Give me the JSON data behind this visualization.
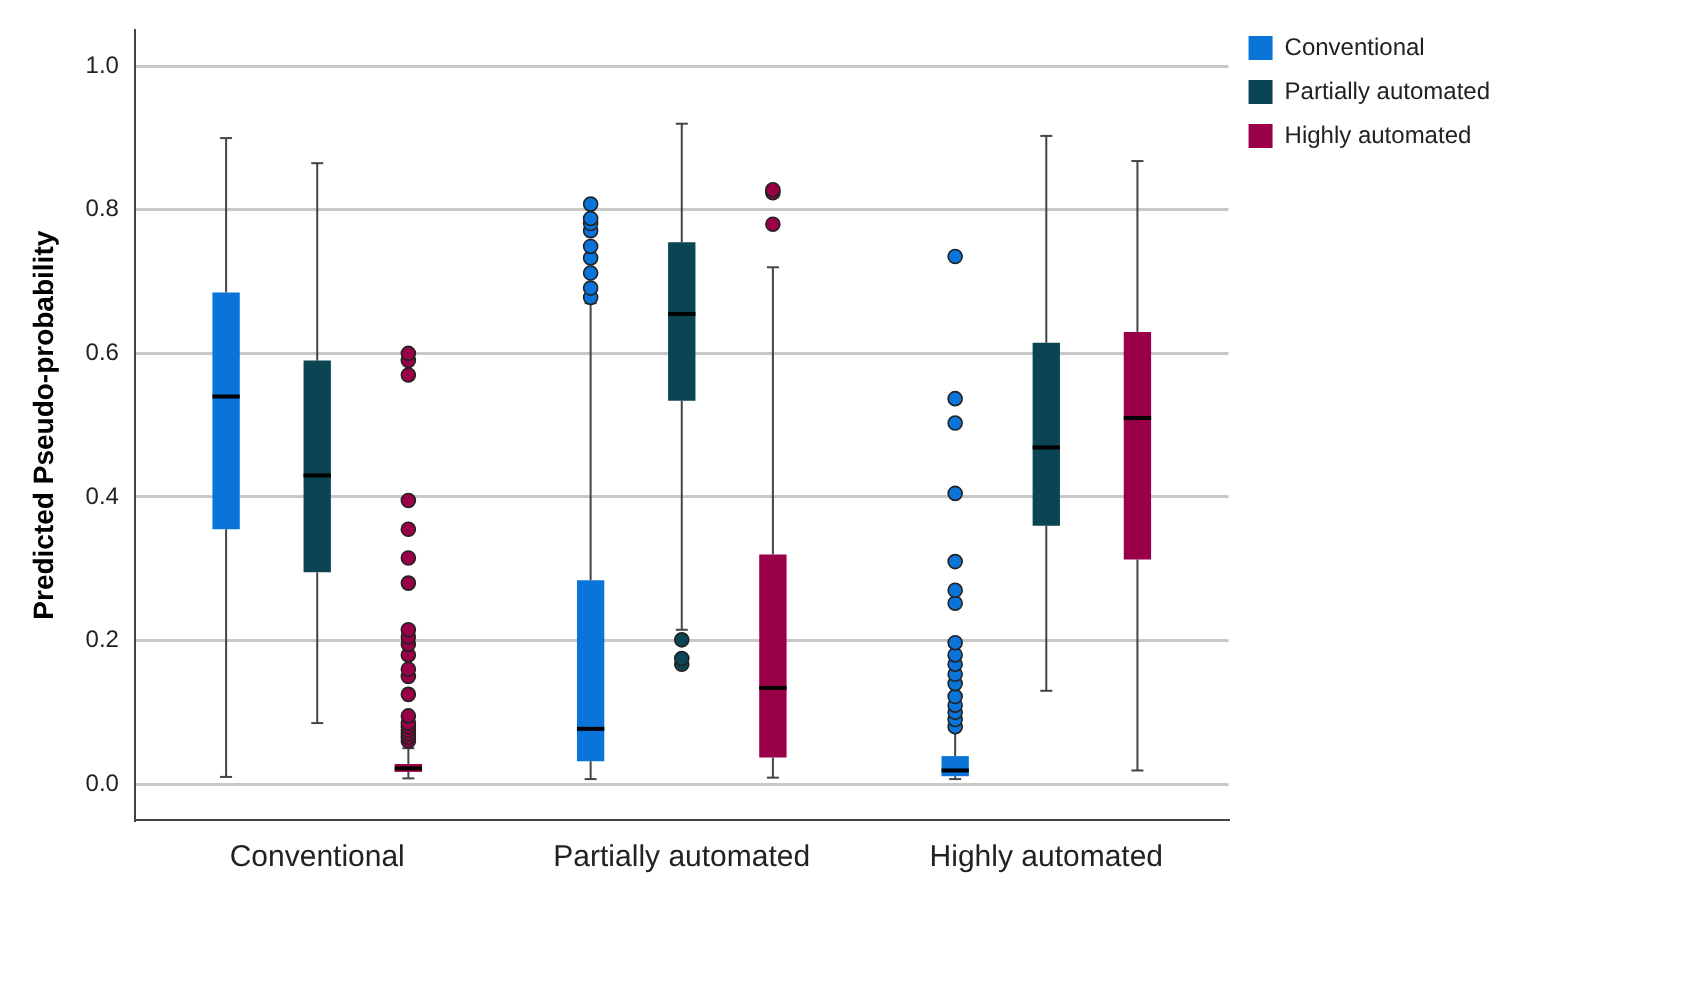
{
  "chart_data": {
    "type": "box",
    "ylabel": "Predicted Pseudo-probability",
    "categories": [
      "Conventional",
      "Partially automated",
      "Highly automated"
    ],
    "series": [
      {
        "name": "Conventional",
        "color": "#0a74d9",
        "boxes": [
          {
            "low": 0.01,
            "q1": 0.355,
            "median": 0.54,
            "q3": 0.685,
            "high": 0.9
          },
          {
            "low": 0.007,
            "q1": 0.032,
            "median": 0.077,
            "q3": 0.284,
            "high": 0.67,
            "outliers": [
              0.678,
              0.691,
              0.712,
              0.733,
              0.749,
              0.771,
              0.781,
              0.788,
              0.808
            ]
          },
          {
            "low": 0.007,
            "q1": 0.011,
            "median": 0.019,
            "q3": 0.039,
            "high": 0.075,
            "outliers": [
              0.08,
              0.09,
              0.1,
              0.11,
              0.122,
              0.14,
              0.153,
              0.167,
              0.18,
              0.197,
              0.252,
              0.27,
              0.31,
              0.405,
              0.503,
              0.537,
              0.735
            ]
          }
        ]
      },
      {
        "name": "Partially automated",
        "color": "#0b4452",
        "boxes": [
          {
            "low": 0.085,
            "q1": 0.295,
            "median": 0.43,
            "q3": 0.59,
            "high": 0.865
          },
          {
            "low": 0.215,
            "q1": 0.534,
            "median": 0.655,
            "q3": 0.755,
            "high": 0.92,
            "outliers": [
              0.167,
              0.175,
              0.201
            ]
          },
          {
            "low": 0.13,
            "q1": 0.36,
            "median": 0.469,
            "q3": 0.615,
            "high": 0.903
          }
        ]
      },
      {
        "name": "Highly automated",
        "color": "#990047",
        "boxes": [
          {
            "low": 0.008,
            "q1": 0.017,
            "median": 0.022,
            "q3": 0.028,
            "high": 0.05,
            "outliers": [
              0.06,
              0.065,
              0.07,
              0.075,
              0.08,
              0.085,
              0.095,
              0.125,
              0.15,
              0.16,
              0.18,
              0.195,
              0.205,
              0.215,
              0.28,
              0.315,
              0.355,
              0.395,
              0.57,
              0.59,
              0.6
            ]
          },
          {
            "low": 0.009,
            "q1": 0.037,
            "median": 0.134,
            "q3": 0.32,
            "high": 0.72,
            "outliers": [
              0.78,
              0.824,
              0.828
            ]
          },
          {
            "low": 0.019,
            "q1": 0.313,
            "median": 0.51,
            "q3": 0.63,
            "high": 0.868
          }
        ]
      }
    ],
    "ylim": [
      -0.05,
      1.05
    ],
    "yticks": [
      {
        "value": 0,
        "label": "0.0"
      },
      {
        "value": 0.2,
        "label": "0.2"
      },
      {
        "value": 0.4,
        "label": "0.4"
      },
      {
        "value": 0.6,
        "label": "0.6"
      },
      {
        "value": 0.8,
        "label": "0.8"
      },
      {
        "value": 1,
        "label": "1.0"
      }
    ],
    "grid": "y",
    "legend": "top right",
    "marker": "circle"
  }
}
